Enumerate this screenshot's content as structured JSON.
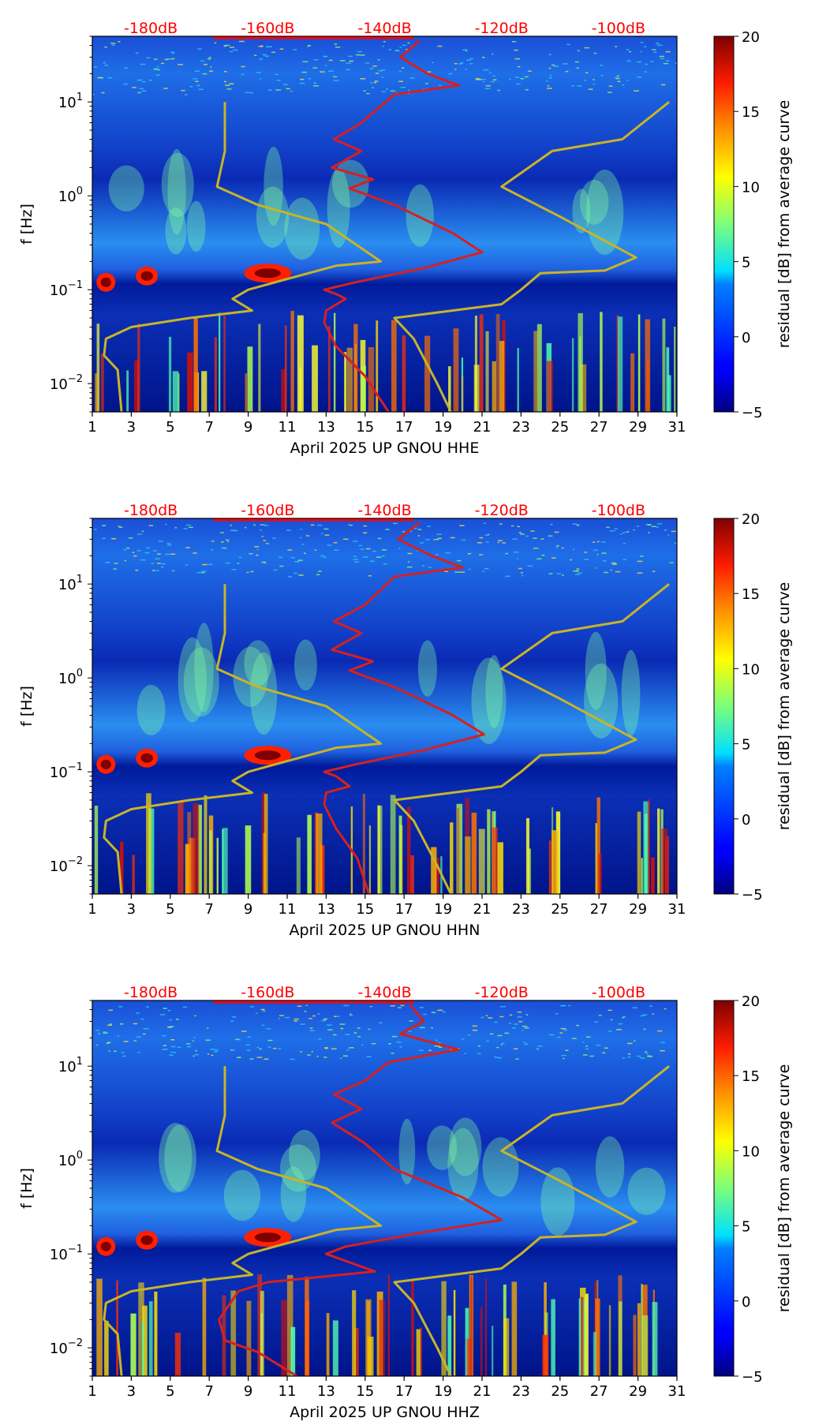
{
  "chart_data": [
    {
      "type": "heatmap",
      "title": "",
      "xlabel": "April 2025 UP GNOU  HHE",
      "ylabel": "f [Hz]",
      "xlim": [
        1,
        31
      ],
      "x_ticks": [
        "1",
        "3",
        "5",
        "7",
        "9",
        "11",
        "13",
        "15",
        "17",
        "19",
        "21",
        "23",
        "25",
        "27",
        "29",
        "31"
      ],
      "ylim": [
        0.005,
        50
      ],
      "y_scale": "log",
      "y_ticks": [
        {
          "base": "10",
          "exp": "1",
          "value": 10
        },
        {
          "base": "10",
          "exp": "0",
          "value": 1
        },
        {
          "base": "10",
          "exp": "−1",
          "value": 0.1
        },
        {
          "base": "10",
          "exp": "−2",
          "value": 0.01
        }
      ],
      "colorbar": {
        "label": "residual [dB] from average curve",
        "range": [
          -5,
          20
        ],
        "ticks": [
          "20",
          "15",
          "10",
          "5",
          "0",
          "−5"
        ],
        "colormap": "jet"
      },
      "reference_scale": {
        "labels": [
          "-180dB",
          "-160dB",
          "-140dB",
          "-120dB",
          "-100dB"
        ],
        "color": "#ff0000"
      },
      "series": [
        {
          "color": "#d62020",
          "points": [
            [
              17.8,
              45
            ],
            [
              16.8,
              30
            ],
            [
              18.2,
              20
            ],
            [
              19.8,
              15
            ],
            [
              16.5,
              12
            ],
            [
              14.8,
              6
            ],
            [
              13.4,
              4
            ],
            [
              14.8,
              3
            ],
            [
              13.3,
              2
            ],
            [
              15.4,
              1.5
            ],
            [
              14.2,
              1.2
            ],
            [
              16.5,
              0.8
            ],
            [
              19.5,
              0.4
            ],
            [
              21.0,
              0.25
            ],
            [
              18.0,
              0.17
            ],
            [
              14.5,
              0.12
            ],
            [
              12.9,
              0.1
            ],
            [
              13.5,
              0.09
            ],
            [
              14.0,
              0.08
            ],
            [
              13.0,
              0.06
            ],
            [
              12.9,
              0.045
            ],
            [
              13.5,
              0.025
            ],
            [
              15.0,
              0.012
            ],
            [
              16.2,
              0.005
            ]
          ]
        },
        {
          "color": "#c8b428",
          "points": [
            [
              7.8,
              10
            ],
            [
              7.8,
              3
            ],
            [
              7.4,
              1.25
            ],
            [
              9.5,
              0.8
            ],
            [
              13.0,
              0.5
            ],
            [
              15.8,
              0.2
            ],
            [
              13.5,
              0.18
            ],
            [
              11.0,
              0.13
            ],
            [
              9.0,
              0.1
            ],
            [
              8.2,
              0.08
            ],
            [
              9.2,
              0.06
            ],
            [
              6.0,
              0.05
            ],
            [
              3.0,
              0.04
            ],
            [
              1.7,
              0.03
            ],
            [
              1.6,
              0.02
            ],
            [
              2.3,
              0.014
            ],
            [
              2.5,
              0.005
            ]
          ]
        },
        {
          "color": "#c8b428",
          "points": [
            [
              30.6,
              10
            ],
            [
              28.2,
              4
            ],
            [
              24.6,
              3
            ],
            [
              22.0,
              1.25
            ],
            [
              25.0,
              0.6
            ],
            [
              28.9,
              0.22
            ],
            [
              27.3,
              0.16
            ],
            [
              24.0,
              0.15
            ],
            [
              23.0,
              0.1
            ],
            [
              22.0,
              0.07
            ],
            [
              16.5,
              0.05
            ],
            [
              17.5,
              0.03
            ],
            [
              18.7,
              0.01
            ],
            [
              19.4,
              0.005
            ]
          ]
        }
      ]
    },
    {
      "type": "heatmap",
      "title": "",
      "xlabel": "April 2025 UP GNOU  HHN",
      "ylabel": "f [Hz]",
      "xlim": [
        1,
        31
      ],
      "x_ticks": [
        "1",
        "3",
        "5",
        "7",
        "9",
        "11",
        "13",
        "15",
        "17",
        "19",
        "21",
        "23",
        "25",
        "27",
        "29",
        "31"
      ],
      "ylim": [
        0.005,
        50
      ],
      "y_scale": "log",
      "y_ticks": [
        {
          "base": "10",
          "exp": "1",
          "value": 10
        },
        {
          "base": "10",
          "exp": "0",
          "value": 1
        },
        {
          "base": "10",
          "exp": "−1",
          "value": 0.1
        },
        {
          "base": "10",
          "exp": "−2",
          "value": 0.01
        }
      ],
      "colorbar": {
        "label": "residual [dB] from average curve",
        "range": [
          -5,
          20
        ],
        "ticks": [
          "20",
          "15",
          "10",
          "5",
          "0",
          "−5"
        ],
        "colormap": "jet"
      },
      "reference_scale": {
        "labels": [
          "-180dB",
          "-160dB",
          "-140dB",
          "-120dB",
          "-100dB"
        ],
        "color": "#ff0000"
      },
      "series": [
        {
          "color": "#d62020",
          "points": [
            [
              17.8,
              45
            ],
            [
              16.7,
              30
            ],
            [
              18.4,
              20
            ],
            [
              20.0,
              15
            ],
            [
              16.5,
              12
            ],
            [
              15.0,
              6
            ],
            [
              13.4,
              4
            ],
            [
              14.8,
              3
            ],
            [
              13.3,
              2
            ],
            [
              15.4,
              1.5
            ],
            [
              14.2,
              1.2
            ],
            [
              16.5,
              0.8
            ],
            [
              19.5,
              0.4
            ],
            [
              21.1,
              0.25
            ],
            [
              18.0,
              0.17
            ],
            [
              14.5,
              0.12
            ],
            [
              12.9,
              0.1
            ],
            [
              13.5,
              0.09
            ],
            [
              14.2,
              0.07
            ],
            [
              13.0,
              0.06
            ],
            [
              12.9,
              0.045
            ],
            [
              13.5,
              0.025
            ],
            [
              14.6,
              0.012
            ],
            [
              15.2,
              0.005
            ]
          ]
        },
        {
          "color": "#c8b428",
          "points": [
            [
              7.8,
              10
            ],
            [
              7.8,
              3
            ],
            [
              7.4,
              1.25
            ],
            [
              9.5,
              0.8
            ],
            [
              13.0,
              0.5
            ],
            [
              15.8,
              0.2
            ],
            [
              13.5,
              0.18
            ],
            [
              11.0,
              0.13
            ],
            [
              9.0,
              0.1
            ],
            [
              8.2,
              0.08
            ],
            [
              9.2,
              0.06
            ],
            [
              6.0,
              0.05
            ],
            [
              3.0,
              0.04
            ],
            [
              1.7,
              0.03
            ],
            [
              1.6,
              0.02
            ],
            [
              2.3,
              0.014
            ],
            [
              2.5,
              0.005
            ]
          ]
        },
        {
          "color": "#c8b428",
          "points": [
            [
              30.6,
              10
            ],
            [
              28.2,
              4
            ],
            [
              24.6,
              3
            ],
            [
              22.0,
              1.25
            ],
            [
              25.0,
              0.6
            ],
            [
              28.9,
              0.22
            ],
            [
              27.3,
              0.16
            ],
            [
              24.0,
              0.15
            ],
            [
              23.0,
              0.1
            ],
            [
              22.0,
              0.07
            ],
            [
              16.5,
              0.05
            ],
            [
              17.5,
              0.03
            ],
            [
              18.7,
              0.01
            ],
            [
              19.4,
              0.005
            ]
          ]
        }
      ]
    },
    {
      "type": "heatmap",
      "title": "",
      "xlabel": "April 2025 UP GNOU  HHZ",
      "ylabel": "f [Hz]",
      "xlim": [
        1,
        31
      ],
      "x_ticks": [
        "1",
        "3",
        "5",
        "7",
        "9",
        "11",
        "13",
        "15",
        "17",
        "19",
        "21",
        "23",
        "25",
        "27",
        "29",
        "31"
      ],
      "ylim": [
        0.005,
        50
      ],
      "y_scale": "log",
      "y_ticks": [
        {
          "base": "10",
          "exp": "1",
          "value": 10
        },
        {
          "base": "10",
          "exp": "0",
          "value": 1
        },
        {
          "base": "10",
          "exp": "−1",
          "value": 0.1
        },
        {
          "base": "10",
          "exp": "−2",
          "value": 0.01
        }
      ],
      "colorbar": {
        "label": "residual [dB] from average curve",
        "range": [
          -5,
          20
        ],
        "ticks": [
          "20",
          "15",
          "10",
          "5",
          "0",
          "−5"
        ],
        "colormap": "jet"
      },
      "reference_scale": {
        "labels": [
          "-180dB",
          "-160dB",
          "-140dB",
          "-120dB",
          "-100dB"
        ],
        "color": "#ff0000"
      },
      "series": [
        {
          "color": "#d62020",
          "points": [
            [
              17.3,
              45
            ],
            [
              18.0,
              30
            ],
            [
              16.8,
              22
            ],
            [
              19.8,
              15
            ],
            [
              16.2,
              11
            ],
            [
              15.0,
              7
            ],
            [
              13.4,
              5
            ],
            [
              14.8,
              3.5
            ],
            [
              13.3,
              2.5
            ],
            [
              15.0,
              1.5
            ],
            [
              16.5,
              0.8
            ],
            [
              20.0,
              0.4
            ],
            [
              22.0,
              0.23
            ],
            [
              18.0,
              0.17
            ],
            [
              14.0,
              0.12
            ],
            [
              13.0,
              0.1
            ],
            [
              15.5,
              0.065
            ],
            [
              10.0,
              0.05
            ],
            [
              8.5,
              0.04
            ],
            [
              7.5,
              0.02
            ],
            [
              7.8,
              0.012
            ],
            [
              9.5,
              0.009
            ],
            [
              11.5,
              0.005
            ]
          ]
        },
        {
          "color": "#c8b428",
          "points": [
            [
              7.8,
              10
            ],
            [
              7.8,
              3
            ],
            [
              7.4,
              1.25
            ],
            [
              9.5,
              0.8
            ],
            [
              13.0,
              0.5
            ],
            [
              15.8,
              0.2
            ],
            [
              13.5,
              0.18
            ],
            [
              11.0,
              0.13
            ],
            [
              9.0,
              0.1
            ],
            [
              8.2,
              0.08
            ],
            [
              9.2,
              0.06
            ],
            [
              6.0,
              0.05
            ],
            [
              3.0,
              0.04
            ],
            [
              1.7,
              0.03
            ],
            [
              1.6,
              0.02
            ],
            [
              2.3,
              0.014
            ],
            [
              2.5,
              0.005
            ]
          ]
        },
        {
          "color": "#c8b428",
          "points": [
            [
              30.6,
              10
            ],
            [
              28.2,
              4
            ],
            [
              24.6,
              3
            ],
            [
              22.0,
              1.25
            ],
            [
              25.0,
              0.6
            ],
            [
              28.9,
              0.22
            ],
            [
              27.3,
              0.16
            ],
            [
              24.0,
              0.15
            ],
            [
              23.0,
              0.1
            ],
            [
              22.0,
              0.07
            ],
            [
              16.5,
              0.05
            ],
            [
              17.5,
              0.03
            ],
            [
              18.7,
              0.01
            ],
            [
              19.4,
              0.005
            ]
          ]
        }
      ]
    }
  ]
}
